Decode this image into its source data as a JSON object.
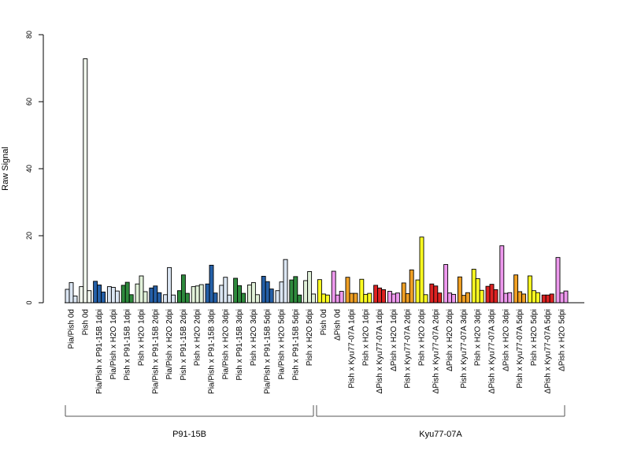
{
  "chart_data": {
    "type": "bar",
    "ylabel": "Raw Signal",
    "ylim": [
      0,
      80
    ],
    "yticks": [
      0,
      20,
      40,
      60,
      80
    ],
    "categories": [
      "Pia/Pish 0d",
      "Pish 0d",
      "Pia/Pish x P91-15B 1dpi",
      "Pia/Pish x H2O 1dpi",
      "Pish x P91-15B 1dpi",
      "Pish x H2O 1dpi",
      "Pia/Pish x P91-15B 2dpi",
      "Pia/Pish x H2O 2dpi",
      "Pish x P91-15B 2dpi",
      "Pish x H2O 2dpi",
      "Pia/Pish x P91-15B 3dpi",
      "Pia/Pish x H2O 3dpi",
      "Pish x P91-15B 3dpi",
      "Pish x H2O 3dpi",
      "Pia/Pish x P91-15B 5dpi",
      "Pia/Pish x H2O 5dpi",
      "Pish x P91-15B 5dpi",
      "Pish x H2O 5dpi",
      "Pish 0d",
      "ΔPish 0d",
      "Pish x Kyu77-07A 1dpi",
      "Pish x H2O 1dpi",
      "ΔPish x Kyu77-07A 1dpi",
      "ΔPish x H2O 1dpi",
      "Pish x Kyu77-07A 2dpi",
      "Pish x H2O 2dpi",
      "ΔPish x Kyu77-07A 2dpi",
      "ΔPish x H2O 2dpi",
      "Pish x Kyu77-07A 3dpi",
      "Pish x H2O 3dpi",
      "ΔPish x Kyu77-07A 3dpi",
      "ΔPish x H2O 3dpi",
      "Pish x Kyu77-07A 5dpi",
      "Pish x H2O 5dpi",
      "ΔPish x Kyu77-07A 5dpi",
      "ΔPish x H2O 5dpi"
    ],
    "colors": [
      "#dbe6f3",
      "#f2f9ee",
      "#2560a8",
      "#dbe6f3",
      "#2e8a3d",
      "#e2f2da",
      "#2560a8",
      "#dbe6f3",
      "#2e8a3d",
      "#e2f2da",
      "#2560a8",
      "#dbe6f3",
      "#2e8a3d",
      "#e2f2da",
      "#2560a8",
      "#dbe6f3",
      "#2e8a3d",
      "#e2f2da",
      "#ffff22",
      "#ee99ee",
      "#f0a024",
      "#ffff22",
      "#dd2222",
      "#ee99ee",
      "#f0a024",
      "#ffff22",
      "#dd2222",
      "#ee99ee",
      "#f0a024",
      "#ffff22",
      "#dd2222",
      "#ee99ee",
      "#f0a024",
      "#ffff22",
      "#dd2222",
      "#ee99ee"
    ],
    "values": [
      [
        4.0,
        6.0,
        2.0
      ],
      [
        4.8,
        72.8,
        3.6
      ],
      [
        6.4,
        5.3,
        3.2
      ],
      [
        4.8,
        4.6,
        3.5
      ],
      [
        5.2,
        6.1,
        2.4
      ],
      [
        5.6,
        8.0,
        3.3
      ],
      [
        4.4,
        5.0,
        3.0
      ],
      [
        2.4,
        10.5,
        2.3
      ],
      [
        3.6,
        8.3,
        2.8
      ],
      [
        4.8,
        5.0,
        5.4
      ],
      [
        5.6,
        11.2,
        2.9
      ],
      [
        5.2,
        7.6,
        2.3
      ],
      [
        7.3,
        5.1,
        2.8
      ],
      [
        5.3,
        6.0,
        2.4
      ],
      [
        7.9,
        6.3,
        4.1
      ],
      [
        3.6,
        6.2,
        12.9
      ],
      [
        6.8,
        7.8,
        2.3
      ],
      [
        6.6,
        9.3,
        2.6
      ],
      [
        6.9,
        2.6,
        2.3
      ],
      [
        9.4,
        2.3,
        3.4
      ],
      [
        7.6,
        2.8,
        2.8
      ],
      [
        7.0,
        2.5,
        2.8
      ],
      [
        5.2,
        4.4,
        3.9
      ],
      [
        3.4,
        2.6,
        2.9
      ],
      [
        5.9,
        2.7,
        9.8
      ],
      [
        6.8,
        19.6,
        2.4
      ],
      [
        5.6,
        5.0,
        2.9
      ],
      [
        11.4,
        2.9,
        2.5
      ],
      [
        7.7,
        2.2,
        3.0
      ],
      [
        10.0,
        7.2,
        3.7
      ],
      [
        4.9,
        5.5,
        3.9
      ],
      [
        17.0,
        2.8,
        3.0
      ],
      [
        8.3,
        3.3,
        2.6
      ],
      [
        8.0,
        3.6,
        3.0
      ],
      [
        2.3,
        2.3,
        2.6
      ],
      [
        13.5,
        2.9,
        3.5
      ]
    ],
    "groups": [
      {
        "label": "P91-15B",
        "first": 0,
        "last": 17
      },
      {
        "label": "Kyu77-07A",
        "first": 18,
        "last": 35
      }
    ],
    "grid": false,
    "legend": "none"
  }
}
